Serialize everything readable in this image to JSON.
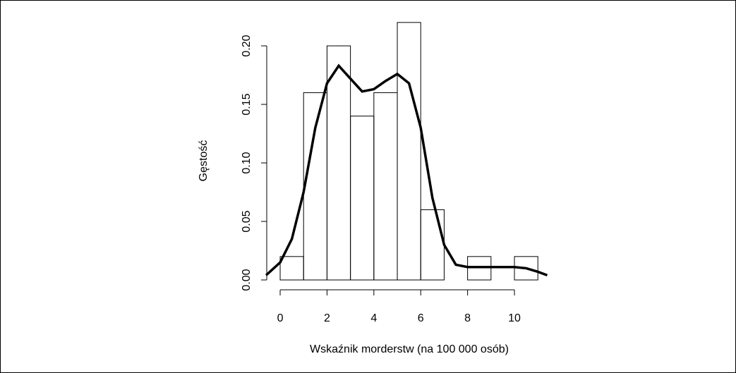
{
  "chart_data": {
    "type": "histogram",
    "xlabel": "Wskaźnik morderstw (na 100 000 osób)",
    "ylabel": "Gęstość",
    "bins": [
      0,
      1,
      2,
      3,
      4,
      5,
      6,
      7,
      8,
      9,
      10,
      11
    ],
    "values": [
      0.02,
      0.16,
      0.2,
      0.14,
      0.16,
      0.22,
      0.06,
      0,
      0.02,
      0,
      0.02
    ],
    "density": {
      "color": "#000000",
      "x": [
        -0.6,
        0,
        0.5,
        1,
        1.5,
        2,
        2.5,
        3,
        3.5,
        4,
        4.5,
        5,
        5.5,
        6,
        6.5,
        7,
        7.5,
        8,
        9,
        10,
        10.5,
        11,
        11.4
      ],
      "values": [
        0.004,
        0.015,
        0.035,
        0.075,
        0.13,
        0.168,
        0.183,
        0.172,
        0.161,
        0.163,
        0.17,
        0.176,
        0.168,
        0.13,
        0.07,
        0.03,
        0.013,
        0.011,
        0.011,
        0.011,
        0.01,
        0.007,
        0.004
      ]
    },
    "xlim": [
      -0.6,
      11.4
    ],
    "ylim": [
      -0.008,
      0.224
    ],
    "xticks": [
      0,
      2,
      4,
      6,
      8,
      10
    ],
    "yticks": [
      {
        "value": 0,
        "label": "0.00"
      },
      0.05,
      {
        "value": 0.1,
        "label": "0.10"
      },
      0.15,
      {
        "value": 0.2,
        "label": "0.20"
      }
    ]
  }
}
